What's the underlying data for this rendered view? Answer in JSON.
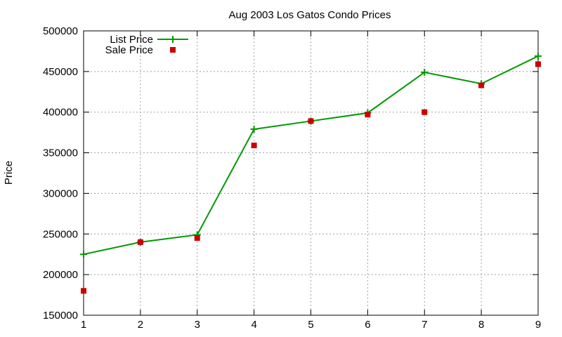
{
  "chart_data": {
    "type": "line",
    "title": "Aug 2003 Los Gatos Condo Prices",
    "xlabel": "",
    "ylabel": "Price",
    "x": [
      1,
      2,
      3,
      4,
      5,
      6,
      7,
      8,
      9
    ],
    "xlim": [
      1,
      9
    ],
    "ylim": [
      150000,
      500000
    ],
    "xticks": [
      1,
      2,
      3,
      4,
      5,
      6,
      7,
      8,
      9
    ],
    "yticks": [
      150000,
      200000,
      250000,
      300000,
      350000,
      400000,
      450000,
      500000
    ],
    "grid": true,
    "legend_position": "top-left",
    "series": [
      {
        "name": "List Price",
        "style": "line-with-plus-markers",
        "color": "#009900",
        "values": [
          225000,
          240000,
          249000,
          379000,
          389000,
          399000,
          449000,
          435000,
          469000
        ]
      },
      {
        "name": "Sale Price",
        "style": "square-markers",
        "color": "#cc0000",
        "values": [
          180000,
          240000,
          245000,
          359000,
          389000,
          397000,
          400000,
          433000,
          459000
        ]
      }
    ]
  }
}
